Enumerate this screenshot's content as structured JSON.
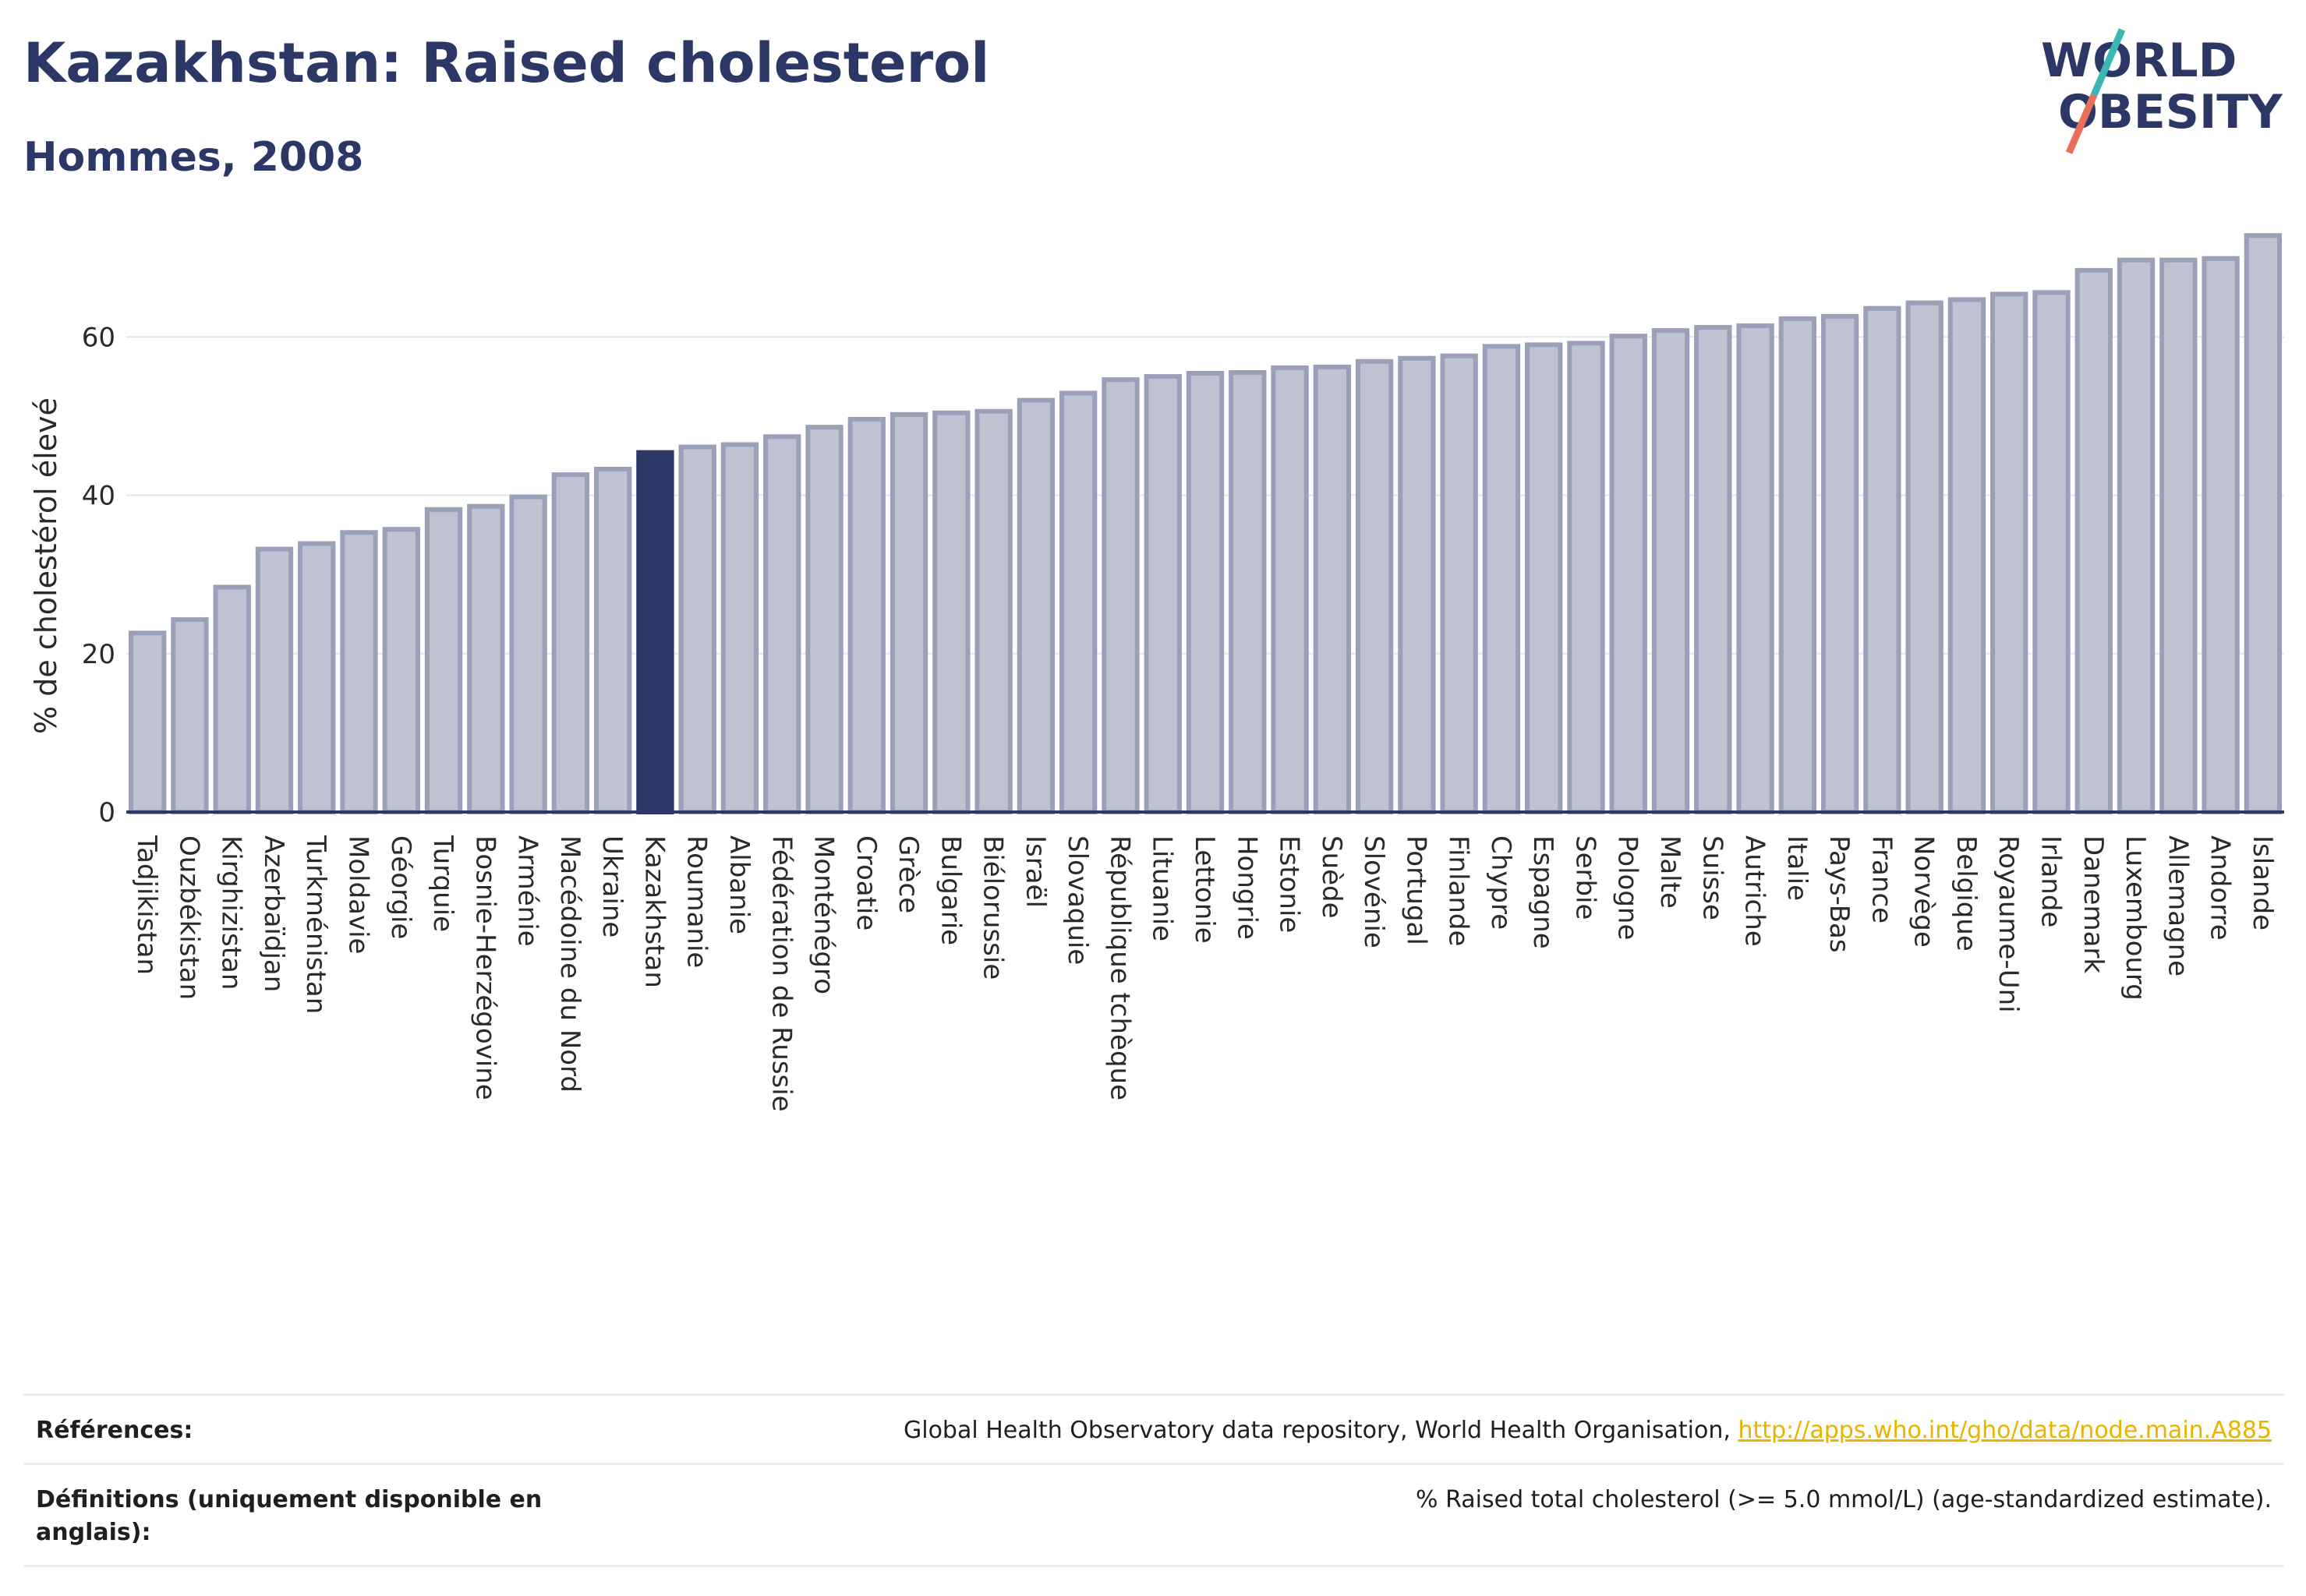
{
  "header": {
    "title": "Kazakhstan: Raised cholesterol",
    "subtitle": "Hommes, 2008"
  },
  "logo": {
    "line1": "WORLD",
    "line2": "OBESITY",
    "colors": {
      "text": "#2b3764",
      "slash_teal": "#3bb7b3",
      "slash_coral": "#e8705b"
    }
  },
  "colors": {
    "bar": "#bfc3d1",
    "bar_border": "#9aa0b8",
    "highlight": "#2b3764",
    "grid": "#e6e6e6",
    "axis": "#2b3764"
  },
  "chart_data": {
    "type": "bar",
    "title": "Kazakhstan: Raised cholesterol",
    "subtitle": "Hommes, 2008",
    "ylabel": "% de cholestérol élevé",
    "xlabel": "",
    "ylim": [
      0,
      74
    ],
    "yticks": [
      0,
      20,
      40,
      60
    ],
    "grid": true,
    "highlight": "Kazakhstan",
    "categories": [
      "Tadjikistan",
      "Ouzbékistan",
      "Kirghizistan",
      "Azerbaïdjan",
      "Turkménistan",
      "Moldavie",
      "Géorgie",
      "Turquie",
      "Bosnie-Herzégovine",
      "Arménie",
      "Macédoine du Nord",
      "Ukraine",
      "Kazakhstan",
      "Roumanie",
      "Albanie",
      "Fédération de Russie",
      "Monténégro",
      "Croatie",
      "Grèce",
      "Bulgarie",
      "Biélorussie",
      "Israël",
      "Slovaquie",
      "République tchèque",
      "Lituanie",
      "Lettonie",
      "Hongrie",
      "Estonie",
      "Suède",
      "Slovénie",
      "Portugal",
      "Finlande",
      "Chypre",
      "Espagne",
      "Serbie",
      "Pologne",
      "Malte",
      "Suisse",
      "Autriche",
      "Italie",
      "Pays-Bas",
      "France",
      "Norvège",
      "Belgique",
      "Royaume-Uni",
      "Irlande",
      "Danemark",
      "Luxembourg",
      "Allemagne",
      "Andorre",
      "Islande"
    ],
    "values": [
      22.6,
      24.3,
      28.4,
      33.2,
      33.9,
      35.3,
      35.7,
      38.2,
      38.6,
      39.8,
      42.6,
      43.3,
      45.4,
      46.1,
      46.4,
      47.4,
      48.6,
      49.6,
      50.2,
      50.4,
      50.6,
      52.0,
      52.9,
      54.6,
      55.0,
      55.4,
      55.5,
      56.1,
      56.2,
      56.9,
      57.3,
      57.6,
      58.8,
      59.0,
      59.2,
      60.1,
      60.8,
      61.2,
      61.4,
      62.3,
      62.6,
      63.6,
      64.3,
      64.7,
      65.4,
      65.6,
      68.4,
      69.7,
      69.7,
      69.9,
      72.8
    ]
  },
  "footer": {
    "references_label": "Références:",
    "references_text": "Global Health Observatory data repository, World Health Organisation,",
    "references_link": "http://apps.who.int/gho/data/node.main.A885",
    "definitions_label": "Définitions (uniquement disponible en anglais):",
    "definitions_text": "% Raised total cholesterol (>= 5.0 mmol/L) (age-standardized estimate)."
  }
}
